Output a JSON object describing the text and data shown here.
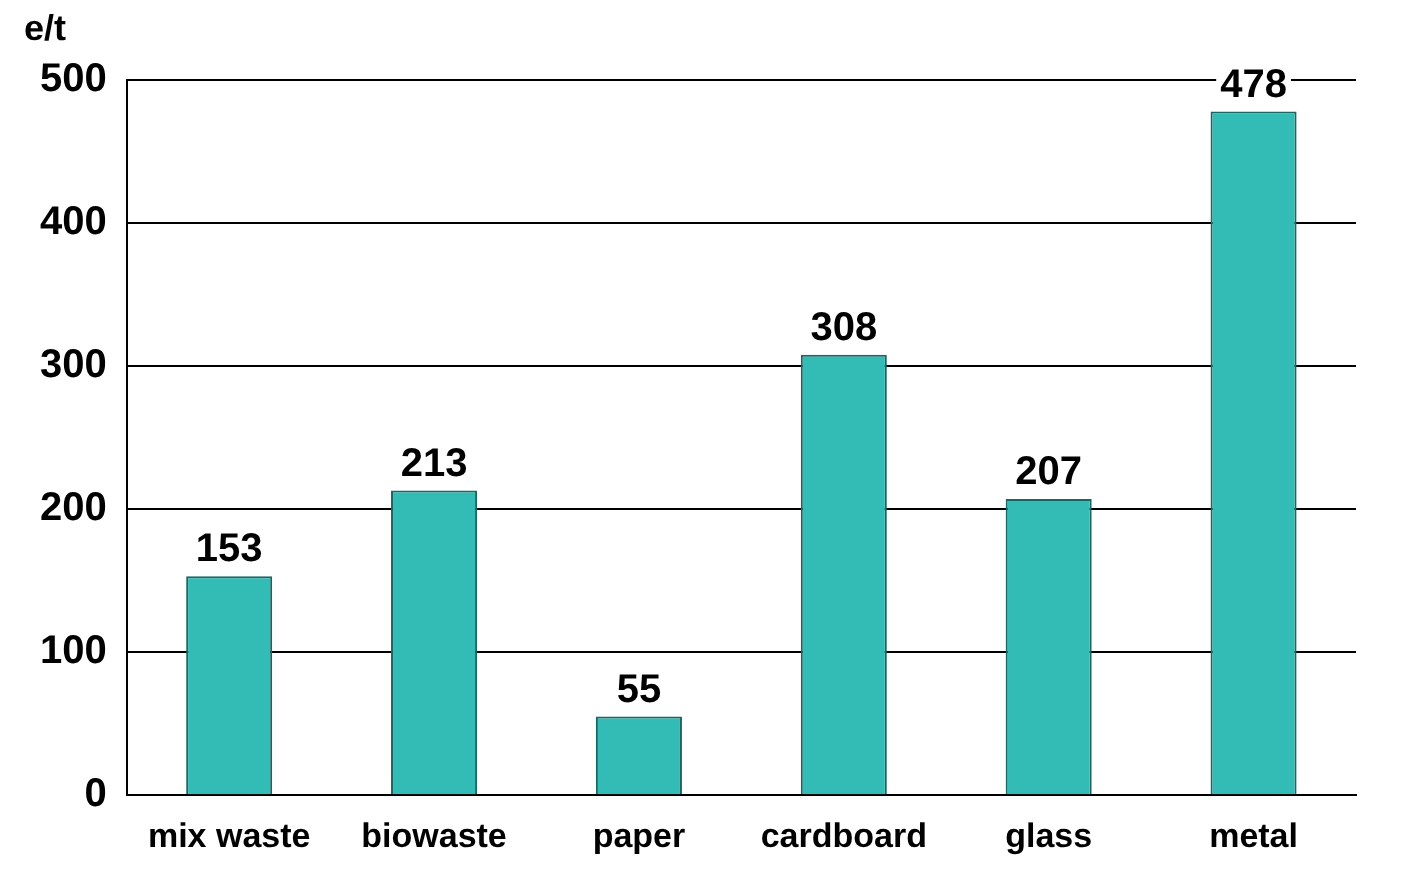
{
  "chart_data": {
    "type": "bar",
    "ylabel": "e/t",
    "categories": [
      "mix waste",
      "biowaste",
      "paper",
      "cardboard",
      "glass",
      "metal"
    ],
    "values": [
      153,
      213,
      55,
      308,
      207,
      478
    ],
    "color": "#33bbb5",
    "ylim": [
      0,
      500
    ],
    "yticks": [
      0,
      100,
      200,
      300,
      400,
      500
    ],
    "grid": "y",
    "data_labels": true,
    "legend": false
  }
}
